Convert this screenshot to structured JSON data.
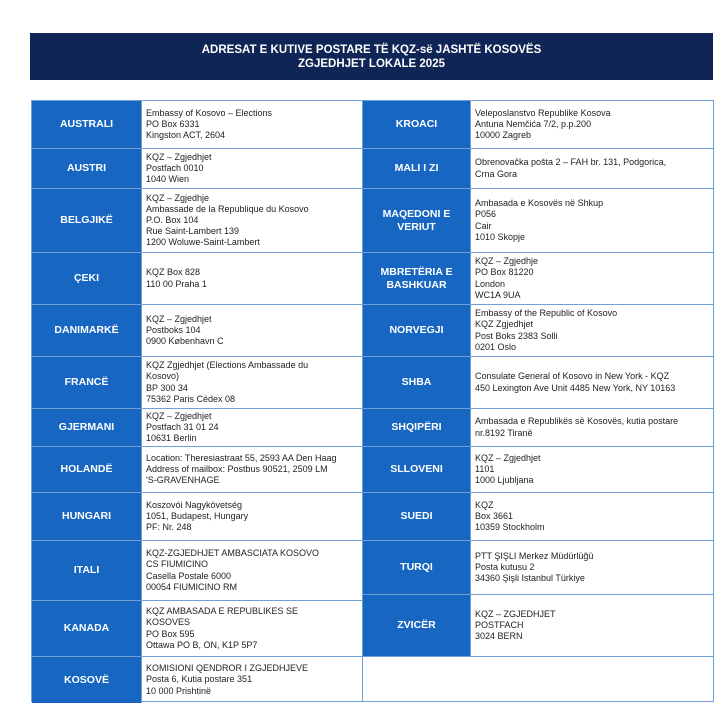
{
  "header": {
    "title": [
      "ADRESAT E KUTIVE POSTARE TË KQZ-së JASHTË KOSOVËS",
      "ZGJEDHJET LOKALE 2025"
    ]
  },
  "left": [
    {
      "country": "AUSTRALI",
      "address": [
        "Embassy of Kosovo – Elections",
        "PO Box 6331",
        "Kingston ACT, 2604"
      ]
    },
    {
      "country": "AUSTRI",
      "address": [
        "KQZ – Zgjedhjet",
        "Postfach 0010",
        "1040 Wien"
      ]
    },
    {
      "country": "BELGJIKË",
      "address": [
        "KQZ – Zgjedhje",
        "Ambassade de la Republique du Kosovo",
        "P.O. Box 104",
        "Rue Saint-Lambert 139",
        "1200 Woluwe-Saint-Lambert"
      ]
    },
    {
      "country": "ÇEKI",
      "address": [
        "KQZ Box 828",
        "110 00 Praha 1"
      ]
    },
    {
      "country": "DANIMARKË",
      "address": [
        "KQZ – Zgjedhjet",
        "Postboks 104",
        "0900 København C"
      ]
    },
    {
      "country": "FRANCË",
      "address": [
        "KQZ Zgjedhjet (Elections Ambassade du",
        "Kosovo)",
        "BP 300 34",
        "75362 Paris Cédex 08"
      ]
    },
    {
      "country": "GJERMANI",
      "address": [
        "KQZ – Zgjedhjet",
        "Postfach 31 01 24",
        "10631 Berlin"
      ]
    },
    {
      "country": "HOLANDË",
      "address": [
        "Location: Theresiastraat 55, 2593 AA Den Haag",
        "Address of mailbox: Postbus 90521, 2509 LM",
        "'S-GRAVENHAGE"
      ]
    },
    {
      "country": "HUNGARI",
      "address": [
        "Koszovói Nagykövetség",
        "1051, Budapest, Hungary",
        "PF: Nr. 248"
      ]
    },
    {
      "country": "ITALI",
      "address": [
        "KQZ-ZGJEDHJET AMBASCIATA KOSOVO",
        "CS FIUMICINO",
        "Casella Postale 6000",
        "00054 FIUMICINO RM"
      ]
    },
    {
      "country": "KANADA",
      "address": [
        "KQZ AMBASADA E REPUBLIKES SE",
        "KOSOVES",
        "PO Box 595",
        "Ottawa PO B, ON, K1P 5P7"
      ]
    },
    {
      "country": "KOSOVË",
      "address": [
        "KOMISIONI QENDROR I ZGJEDHJEVE",
        "Posta 6, Kutia postare 351",
        "10 000 Prishtinë"
      ]
    }
  ],
  "right": [
    {
      "country": "KROACI",
      "address": [
        "Veleposlanstvo Republike Kosova",
        "Antuna Nemčića 7/2, p.p.200",
        "10000 Zagreb"
      ]
    },
    {
      "country": "MALI I ZI",
      "address": [
        "Obrenovačka pošta 2 – FAH br. 131, Podgorica,",
        "Crna Gora"
      ]
    },
    {
      "country": "MAQEDONI E VERIUT",
      "address": [
        "Ambasada e Kosovës në Shkup",
        "P056",
        "Cair",
        "1010 Skopje"
      ]
    },
    {
      "country": "MBRETËRIA E BASHKUAR",
      "address": [
        "KQZ – Zgjedhje",
        "PO Box 81220",
        "London",
        "WC1A 9UA"
      ]
    },
    {
      "country": "NORVEGJI",
      "address": [
        "Embassy of the Republic of Kosovo",
        "KQZ Zgjedhjet",
        "Post Boks 2383 Solli",
        "0201 Oslo"
      ]
    },
    {
      "country": "SHBA",
      "address": [
        "Consulate General of Kosovo in New York - KQZ",
        "450 Lexington Ave Unit 4485 New York, NY 10163"
      ]
    },
    {
      "country": "SHQIPËRI",
      "address": [
        "Ambasada e Republikës së Kosovës, kutia postare",
        "nr.8192 Tiranë"
      ]
    },
    {
      "country": "SLLOVENI",
      "address": [
        "KQZ – Zgjedhjet",
        "1101",
        "1000 Ljubljana"
      ]
    },
    {
      "country": "SUEDI",
      "address": [
        "KQZ",
        "Box 3661",
        "10359 Stockholm"
      ]
    },
    {
      "country": "TURQI",
      "address": [
        "PTT ŞIŞLI Merkez Müdürlüğü",
        "Posta kutusu 2",
        "34360 Şişli Istanbul Türkiye"
      ]
    },
    {
      "country": "ZVICËR",
      "address": [
        "KQZ – ZGJEDHJET",
        "POSTFACH",
        "3024 BERN"
      ]
    }
  ]
}
